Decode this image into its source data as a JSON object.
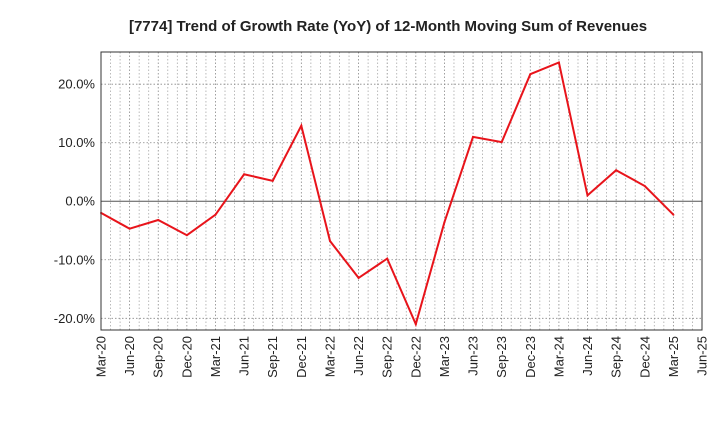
{
  "chart_data": {
    "type": "line",
    "title": "[7774]  Trend of Growth Rate (YoY) of 12-Month Moving Sum of Revenues",
    "xlabel": "",
    "ylabel": "",
    "x_ticks": [
      "Mar-20",
      "Jun-20",
      "Sep-20",
      "Dec-20",
      "Mar-21",
      "Jun-21",
      "Sep-21",
      "Dec-21",
      "Mar-22",
      "Jun-22",
      "Sep-22",
      "Dec-22",
      "Mar-23",
      "Jun-23",
      "Sep-23",
      "Dec-23",
      "Mar-24",
      "Jun-24",
      "Sep-24",
      "Dec-24",
      "Mar-25",
      "Jun-25"
    ],
    "y_ticks": [
      -20,
      -10,
      0,
      10,
      20
    ],
    "y_tick_labels": [
      "-20.0%",
      "-10.0%",
      "0.0%",
      "10.0%",
      "20.0%"
    ],
    "ylim": [
      -22,
      25.5
    ],
    "grid": true,
    "series": [
      {
        "color": "#e8141b",
        "x": [
          "Mar-20",
          "Jun-20",
          "Sep-20",
          "Dec-20",
          "Mar-21",
          "Jun-21",
          "Sep-21",
          "Dec-21",
          "Mar-22",
          "Jun-22",
          "Sep-22",
          "Dec-22",
          "Mar-23",
          "Jun-23",
          "Sep-23",
          "Dec-23",
          "Mar-24",
          "Jun-24",
          "Sep-24",
          "Dec-24",
          "Mar-25"
        ],
        "values": [
          -2.0,
          -4.7,
          -3.2,
          -5.8,
          -2.3,
          4.6,
          3.5,
          12.9,
          -6.8,
          -13.1,
          -9.8,
          -21.0,
          -3.6,
          11.0,
          10.1,
          21.7,
          23.7,
          1.0,
          5.3,
          2.6,
          -2.3
        ]
      }
    ]
  }
}
